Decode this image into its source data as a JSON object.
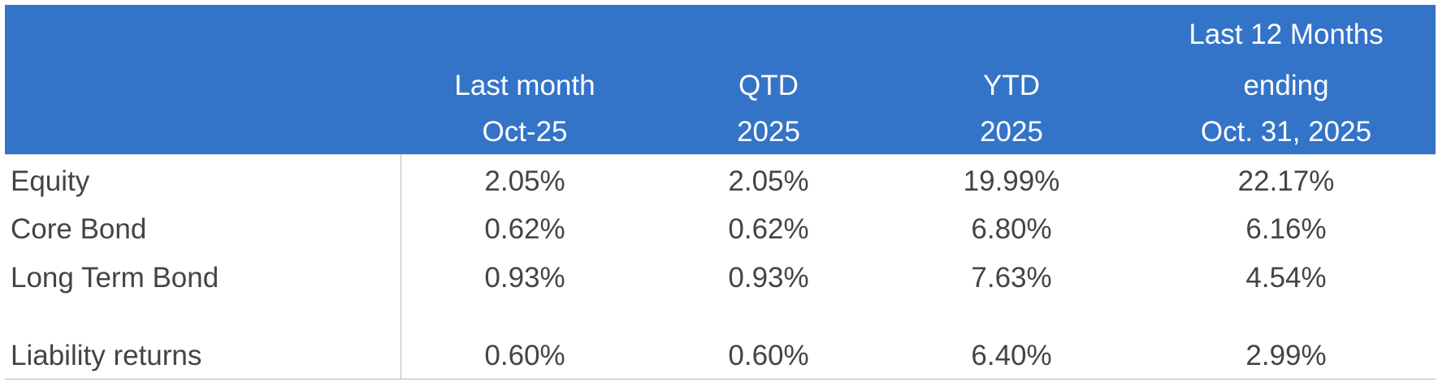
{
  "header": {
    "columns": [
      {
        "lines": [
          "Last month",
          "Oct-25"
        ]
      },
      {
        "lines": [
          "QTD",
          "2025"
        ]
      },
      {
        "lines": [
          "YTD",
          "2025"
        ]
      },
      {
        "lines": [
          "Last 12 Months",
          "ending",
          "Oct. 31, 2025"
        ]
      }
    ]
  },
  "table": {
    "rows": [
      [
        "Equity",
        "2.05%",
        "2.05%",
        "19.99%",
        "22.17%"
      ],
      [
        "Core Bond",
        "0.62%",
        "0.62%",
        "6.80%",
        "6.16%"
      ],
      [
        "Long Term Bond",
        "0.93%",
        "0.93%",
        "7.63%",
        "4.54%"
      ],
      [
        "Liability returns",
        "0.60%",
        "0.60%",
        "6.40%",
        "2.99%"
      ]
    ]
  }
}
